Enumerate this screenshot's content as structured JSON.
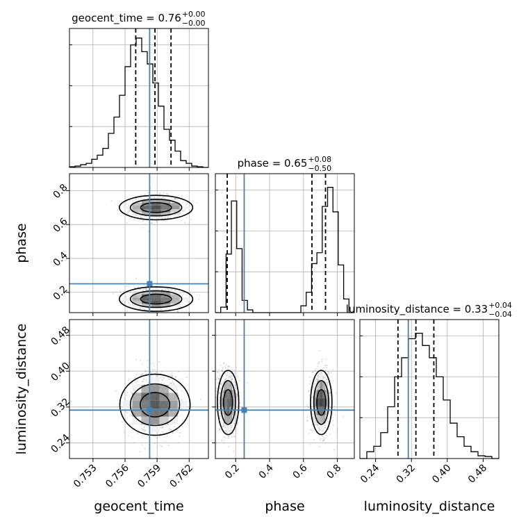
{
  "chart_data": {
    "type": "corner",
    "parameters": [
      "geocent_time",
      "phase",
      "luminosity_distance"
    ],
    "truths": {
      "geocent_time": 0.7583,
      "phase": 0.25,
      "luminosity_distance": 0.313
    },
    "colors": {
      "truth": "#4682b4",
      "hist": "#000000",
      "grid": "#b0b0b0",
      "points": "#888888"
    },
    "titles": {
      "geocent_time": {
        "prefix": "geocent_time = 0.76",
        "plus": "+0.00",
        "minus": "−0.00"
      },
      "phase": {
        "prefix": "phase = 0.65",
        "plus": "+0.08",
        "minus": "−0.50"
      },
      "luminosity_distance": {
        "prefix": "luminosity_distance = 0.33",
        "plus": "+0.04",
        "minus": "−0.04"
      }
    },
    "axis_labels": {
      "geocent_time": "geocent_time",
      "phase": "phase",
      "luminosity_distance": "luminosity_distance"
    },
    "ranges": {
      "geocent_time": [
        0.7508,
        0.7638
      ],
      "phase": [
        0.08,
        0.9
      ],
      "luminosity_distance": [
        0.205,
        0.515
      ]
    },
    "ticks": {
      "geocent_time": [
        {
          "v": 0.753,
          "t": "0.753"
        },
        {
          "v": 0.756,
          "t": "0.756"
        },
        {
          "v": 0.759,
          "t": "0.759"
        },
        {
          "v": 0.762,
          "t": "0.762"
        }
      ],
      "phase": [
        {
          "v": 0.2,
          "t": "0.2"
        },
        {
          "v": 0.4,
          "t": "0.4"
        },
        {
          "v": 0.6,
          "t": "0.6"
        },
        {
          "v": 0.8,
          "t": "0.8"
        }
      ],
      "luminosity_distance": [
        {
          "v": 0.24,
          "t": "0.24"
        },
        {
          "v": 0.32,
          "t": "0.32"
        },
        {
          "v": 0.4,
          "t": "0.40"
        },
        {
          "v": 0.48,
          "t": "0.48"
        }
      ]
    },
    "quantiles": {
      "geocent_time": [
        0.757,
        0.7588,
        0.7603
      ],
      "phase": [
        0.15,
        0.65,
        0.73
      ],
      "luminosity_distance": [
        0.29,
        0.33,
        0.37
      ]
    },
    "marginals": {
      "geocent_time": [
        0.005,
        0.01,
        0.02,
        0.03,
        0.06,
        0.09,
        0.14,
        0.25,
        0.37,
        0.53,
        0.74,
        0.9,
        0.95,
        0.85,
        0.76,
        0.62,
        0.45,
        0.28,
        0.2,
        0.12,
        0.05,
        0.03,
        0.01,
        0.005,
        0.0
      ],
      "phase": [
        0.0,
        0.04,
        0.43,
        0.82,
        0.47,
        0.09,
        0.02,
        0.0,
        0.0,
        0.0,
        0.0,
        0.0,
        0.0,
        0.0,
        0.0,
        0.0,
        0.05,
        0.15,
        0.36,
        0.44,
        0.78,
        0.92,
        0.74,
        0.35,
        0.1,
        0.0
      ],
      "luminosity_distance": [
        0.0,
        0.05,
        0.09,
        0.19,
        0.38,
        0.6,
        0.74,
        0.88,
        0.92,
        0.83,
        0.74,
        0.6,
        0.43,
        0.26,
        0.16,
        0.09,
        0.05,
        0.02,
        0.015,
        0.0
      ]
    }
  }
}
